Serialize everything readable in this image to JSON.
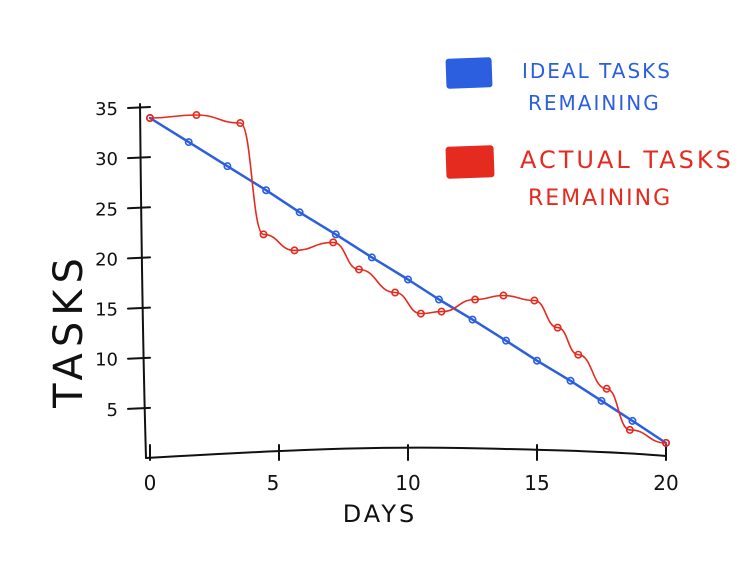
{
  "chart_data": {
    "type": "line",
    "xlabel": "DAYS",
    "ylabel": "TASKS",
    "xlim": [
      0,
      20
    ],
    "ylim": [
      0,
      35
    ],
    "x_ticks": [
      0,
      5,
      10,
      15,
      20
    ],
    "y_ticks": [
      5,
      10,
      15,
      20,
      25,
      30,
      35
    ],
    "grid": false,
    "legend_position": "top-right",
    "series": [
      {
        "name": "IDEAL TASKS REMAINING",
        "color": "#2b5fe0",
        "x": [
          0,
          1.5,
          3,
          4.5,
          5.8,
          7.2,
          8.6,
          10,
          11.2,
          12.5,
          13.8,
          15,
          16.3,
          17.5,
          18.7,
          20
        ],
        "y": [
          34,
          31.6,
          29.2,
          26.8,
          24.6,
          22.4,
          20.1,
          17.9,
          15.9,
          13.9,
          11.8,
          9.8,
          7.8,
          5.8,
          3.8,
          1.6
        ]
      },
      {
        "name": "ACTUAL TASKS REMAINING",
        "color": "#e52a1f",
        "x": [
          0,
          1.8,
          3.5,
          4.4,
          5.6,
          7.1,
          8.1,
          9.5,
          10.5,
          11.3,
          12.6,
          13.7,
          14.9,
          15.8,
          16.6,
          17.7,
          18.6,
          20
        ],
        "y": [
          34,
          34.3,
          33.5,
          22.4,
          20.8,
          21.6,
          18.9,
          16.6,
          14.5,
          14.7,
          15.9,
          16.3,
          15.8,
          13.1,
          10.4,
          7.0,
          2.9,
          1.6
        ]
      }
    ]
  }
}
